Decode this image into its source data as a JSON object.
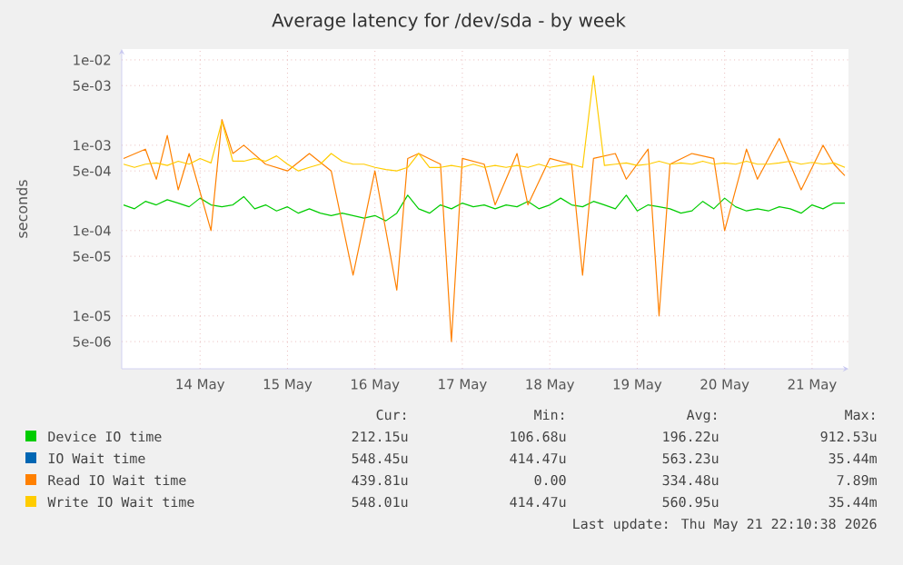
{
  "chart_data": {
    "type": "line",
    "title": "Average latency for /dev/sda - by week",
    "ylabel": "seconds",
    "log": "y",
    "grid": true,
    "legend": "bottom",
    "line_style": "solid",
    "marker": "none",
    "xlim": [
      "2026-05-13T14:30",
      "2026-05-21T22:00"
    ],
    "ylim": [
      2.4e-06,
      0.0134
    ],
    "xticks": [
      {
        "value": "2026-05-14T12:00",
        "label": "14 May"
      },
      {
        "value": "2026-05-15T12:00",
        "label": "15 May"
      },
      {
        "value": "2026-05-16T12:00",
        "label": "16 May"
      },
      {
        "value": "2026-05-17T12:00",
        "label": "17 May"
      },
      {
        "value": "2026-05-18T12:00",
        "label": "18 May"
      },
      {
        "value": "2026-05-19T12:00",
        "label": "19 May"
      },
      {
        "value": "2026-05-20T12:00",
        "label": "20 May"
      },
      {
        "value": "2026-05-21T12:00",
        "label": "21 May"
      }
    ],
    "yticks": [
      {
        "value": 0.01,
        "label": "1e-02"
      },
      {
        "value": 0.005,
        "label": "5e-03"
      },
      {
        "value": 0.001,
        "label": "1e-03"
      },
      {
        "value": 0.0005,
        "label": "5e-04"
      },
      {
        "value": 0.0001,
        "label": "1e-04"
      },
      {
        "value": 5e-05,
        "label": "5e-05"
      },
      {
        "value": 1e-05,
        "label": "1e-05"
      },
      {
        "value": 5e-06,
        "label": "5e-06"
      }
    ],
    "x": [
      "2026-05-13T15:00",
      "2026-05-13T18:00",
      "2026-05-13T21:00",
      "2026-05-14T00:00",
      "2026-05-14T03:00",
      "2026-05-14T06:00",
      "2026-05-14T09:00",
      "2026-05-14T12:00",
      "2026-05-14T15:00",
      "2026-05-14T18:00",
      "2026-05-14T21:00",
      "2026-05-15T00:00",
      "2026-05-15T03:00",
      "2026-05-15T06:00",
      "2026-05-15T09:00",
      "2026-05-15T12:00",
      "2026-05-15T15:00",
      "2026-05-15T18:00",
      "2026-05-15T21:00",
      "2026-05-16T00:00",
      "2026-05-16T03:00",
      "2026-05-16T06:00",
      "2026-05-16T09:00",
      "2026-05-16T12:00",
      "2026-05-16T15:00",
      "2026-05-16T18:00",
      "2026-05-16T21:00",
      "2026-05-17T00:00",
      "2026-05-17T03:00",
      "2026-05-17T06:00",
      "2026-05-17T09:00",
      "2026-05-17T12:00",
      "2026-05-17T15:00",
      "2026-05-17T18:00",
      "2026-05-17T21:00",
      "2026-05-18T00:00",
      "2026-05-18T03:00",
      "2026-05-18T06:00",
      "2026-05-18T09:00",
      "2026-05-18T12:00",
      "2026-05-18T15:00",
      "2026-05-18T18:00",
      "2026-05-18T21:00",
      "2026-05-19T00:00",
      "2026-05-19T03:00",
      "2026-05-19T06:00",
      "2026-05-19T09:00",
      "2026-05-19T12:00",
      "2026-05-19T15:00",
      "2026-05-19T18:00",
      "2026-05-19T21:00",
      "2026-05-20T00:00",
      "2026-05-20T03:00",
      "2026-05-20T06:00",
      "2026-05-20T09:00",
      "2026-05-20T12:00",
      "2026-05-20T15:00",
      "2026-05-20T18:00",
      "2026-05-20T21:00",
      "2026-05-21T00:00",
      "2026-05-21T03:00",
      "2026-05-21T06:00",
      "2026-05-21T09:00",
      "2026-05-21T12:00",
      "2026-05-21T15:00",
      "2026-05-21T18:00",
      "2026-05-21T21:00"
    ],
    "series": [
      {
        "name": "Device IO time",
        "color": "#00cc00",
        "values": [
          0.0002,
          0.00018,
          0.00022,
          0.0002,
          0.00023,
          0.00021,
          0.00019,
          0.00024,
          0.0002,
          0.00019,
          0.0002,
          0.00025,
          0.00018,
          0.0002,
          0.00017,
          0.00019,
          0.00016,
          0.00018,
          0.00016,
          0.00015,
          0.00016,
          0.00015,
          0.00014,
          0.00015,
          0.00013,
          0.00016,
          0.00026,
          0.00018,
          0.00016,
          0.0002,
          0.00018,
          0.00021,
          0.00019,
          0.0002,
          0.00018,
          0.0002,
          0.00019,
          0.00022,
          0.00018,
          0.0002,
          0.00024,
          0.0002,
          0.00019,
          0.00022,
          0.0002,
          0.00018,
          0.00026,
          0.00017,
          0.0002,
          0.00019,
          0.00018,
          0.00016,
          0.00017,
          0.00022,
          0.00018,
          0.00024,
          0.00019,
          0.00017,
          0.00018,
          0.00017,
          0.00019,
          0.00018,
          0.00016,
          0.0002,
          0.00018,
          0.00021,
          0.00021
        ]
      },
      {
        "name": "IO Wait time",
        "color": "#0066b3",
        "values": [
          null,
          null,
          null,
          null,
          null,
          null,
          null,
          null,
          null,
          null,
          null,
          null,
          null,
          null,
          null,
          null,
          null,
          null,
          null,
          null,
          null,
          null,
          null,
          null,
          null,
          null,
          null,
          null,
          null,
          null,
          null,
          null,
          null,
          null,
          null,
          null,
          null,
          null,
          null,
          null,
          null,
          null,
          null,
          null,
          null,
          null,
          null,
          null,
          null,
          null,
          null,
          null,
          null,
          null,
          null,
          null,
          null,
          null,
          null,
          null,
          null,
          null,
          null,
          null,
          null,
          null,
          null
        ]
      },
      {
        "name": "Read IO Wait time",
        "color": "#ff8000",
        "values": [
          0.0007,
          null,
          0.0009,
          0.0004,
          0.0013,
          0.0003,
          0.0008,
          null,
          0.0001,
          0.002,
          0.0008,
          0.001,
          null,
          0.0006,
          null,
          0.0005,
          null,
          0.0008,
          null,
          0.0005,
          null,
          3e-05,
          null,
          0.0005,
          null,
          2e-05,
          0.0007,
          0.0008,
          null,
          0.0006,
          5e-06,
          0.0007,
          null,
          0.0006,
          0.0002,
          null,
          0.0008,
          0.0002,
          null,
          0.0007,
          null,
          0.0006,
          3e-05,
          0.0007,
          null,
          0.0008,
          0.0004,
          null,
          0.0009,
          1e-05,
          0.0006,
          null,
          0.0008,
          null,
          0.0007,
          0.0001,
          null,
          0.0009,
          0.0004,
          null,
          0.0012,
          null,
          0.0003,
          null,
          0.001,
          0.0006,
          0.00044
        ]
      },
      {
        "name": "Write IO Wait time",
        "color": "#ffcc00",
        "values": [
          0.0006,
          0.00055,
          0.0006,
          0.00062,
          0.00058,
          0.00065,
          0.0006,
          0.0007,
          0.00062,
          0.0019,
          0.00065,
          0.00065,
          0.0007,
          0.00065,
          0.00075,
          0.0006,
          0.0005,
          0.00055,
          0.0006,
          0.0008,
          0.00065,
          0.0006,
          0.0006,
          0.00055,
          0.00052,
          0.0005,
          0.00055,
          0.0008,
          0.00055,
          0.00055,
          0.00058,
          0.00055,
          0.0006,
          0.00055,
          0.00058,
          0.00055,
          0.00058,
          0.00055,
          0.0006,
          0.00055,
          0.00058,
          0.0006,
          0.00055,
          0.0065,
          0.00058,
          0.0006,
          0.00062,
          0.00058,
          0.0006,
          0.00065,
          0.0006,
          0.00062,
          0.0006,
          0.00065,
          0.0006,
          0.00062,
          0.0006,
          0.00065,
          0.0006,
          0.0006,
          0.00062,
          0.00065,
          0.0006,
          0.00063,
          0.0006,
          0.00062,
          0.00055
        ]
      }
    ],
    "annotations": [
      "Cur:",
      "Min:",
      "Avg:",
      "Max:",
      "212.15u",
      "106.68u",
      "196.22u",
      "912.53u",
      "548.45u",
      "414.47u",
      "563.23u",
      "35.44m",
      "439.81u",
      "0.00",
      "334.48u",
      "7.89m",
      "548.01u",
      "414.47u",
      "560.95u",
      "35.44m",
      "Last update: Thu May 21 22:10:38 2026"
    ]
  }
}
